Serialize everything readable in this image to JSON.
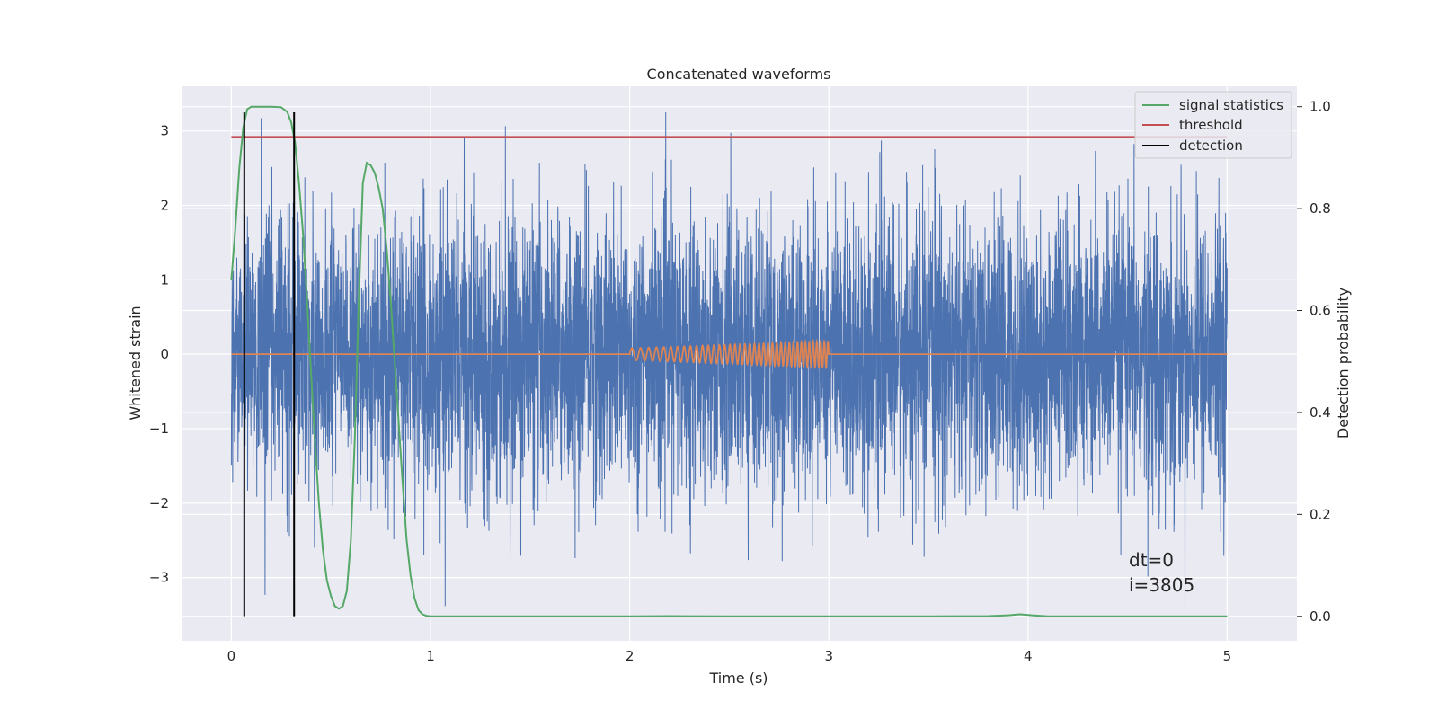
{
  "colors": {
    "background": "#eaeaf2",
    "grid": "#ffffff",
    "strain": "#4c72b0",
    "injection": "#dd8452",
    "signal_statistics": "#55a868",
    "threshold": "#c44e52",
    "detection": "#000000"
  },
  "chart_data": {
    "type": "line",
    "title": "Concatenated waveforms",
    "xlabel": "Time (s)",
    "ylabel": "Whitened strain",
    "ylabel_right": "Detection probability",
    "xlim": [
      -0.25,
      5.35
    ],
    "ylim": [
      -3.85,
      3.6
    ],
    "ylim_right": [
      -0.048,
      1.04
    ],
    "xticks": [
      0,
      1,
      2,
      3,
      4,
      5
    ],
    "xtick_labels": [
      "0",
      "1",
      "2",
      "3",
      "4",
      "5"
    ],
    "yticks": [
      -3,
      -2,
      -1,
      0,
      1,
      2,
      3
    ],
    "ytick_labels": [
      "−3",
      "−2",
      "−1",
      "0",
      "1",
      "2",
      "3"
    ],
    "yticks_right": [
      0.0,
      0.2,
      0.4,
      0.6,
      0.8,
      1.0
    ],
    "ytick_labels_right": [
      "0.0",
      "0.2",
      "0.4",
      "0.6",
      "0.8",
      "1.0"
    ],
    "grid": true,
    "legend_position": "upper right",
    "legend": [
      "signal statistics",
      "threshold",
      "detection"
    ],
    "annotations": [
      "dt=0",
      "i=3805"
    ],
    "series": [
      {
        "name": "whitened strain noise",
        "axis": "left",
        "x_range": [
          0,
          5
        ],
        "amplitude_range": [
          -3.55,
          3.25
        ],
        "description_values": {
          "typical_std": 0.9
        }
      },
      {
        "name": "injected waveform",
        "axis": "left",
        "x": [
          0,
          2.0,
          2.0,
          3.0,
          3.0,
          5.0
        ],
        "y": [
          0,
          0,
          0.08,
          0.18,
          0,
          0
        ],
        "chirp": {
          "start": 2.0,
          "end": 3.0,
          "freq_start_hz": 22,
          "freq_end_hz": 55,
          "amp_start": 0.08,
          "amp_end": 0.18
        }
      },
      {
        "name": "signal statistics",
        "axis": "right",
        "x": [
          0.0,
          0.02,
          0.04,
          0.06,
          0.08,
          0.1,
          0.13,
          0.2,
          0.25,
          0.28,
          0.3,
          0.32,
          0.34,
          0.36,
          0.38,
          0.4,
          0.42,
          0.44,
          0.46,
          0.48,
          0.5,
          0.52,
          0.54,
          0.56,
          0.58,
          0.6,
          0.62,
          0.64,
          0.66,
          0.68,
          0.7,
          0.72,
          0.74,
          0.76,
          0.78,
          0.8,
          0.82,
          0.84,
          0.86,
          0.88,
          0.9,
          0.92,
          0.94,
          0.96,
          0.98,
          1.0,
          1.5,
          2.0,
          2.2,
          2.5,
          3.0,
          3.5,
          3.8,
          3.9,
          3.96,
          4.02,
          4.1,
          4.5,
          5.0
        ],
        "y": [
          0.66,
          0.76,
          0.88,
          0.96,
          0.995,
          1.0,
          1.0,
          1.0,
          0.999,
          0.99,
          0.97,
          0.93,
          0.85,
          0.75,
          0.62,
          0.48,
          0.34,
          0.22,
          0.13,
          0.07,
          0.04,
          0.02,
          0.015,
          0.02,
          0.05,
          0.15,
          0.35,
          0.62,
          0.85,
          0.89,
          0.885,
          0.87,
          0.84,
          0.8,
          0.72,
          0.62,
          0.5,
          0.38,
          0.26,
          0.15,
          0.08,
          0.035,
          0.012,
          0.004,
          0.001,
          0.0,
          0.0,
          0.0,
          0.0005,
          0.0,
          0.0,
          0.0,
          0.0005,
          0.002,
          0.004,
          0.002,
          0.0,
          0.0,
          0.0
        ]
      },
      {
        "name": "threshold",
        "axis": "left",
        "x": [
          0,
          5
        ],
        "y": [
          2.92,
          2.92
        ]
      },
      {
        "name": "detection",
        "axis": "left",
        "vlines": [
          0.065,
          0.315
        ],
        "y_range": [
          -3.52,
          3.25
        ]
      }
    ]
  }
}
